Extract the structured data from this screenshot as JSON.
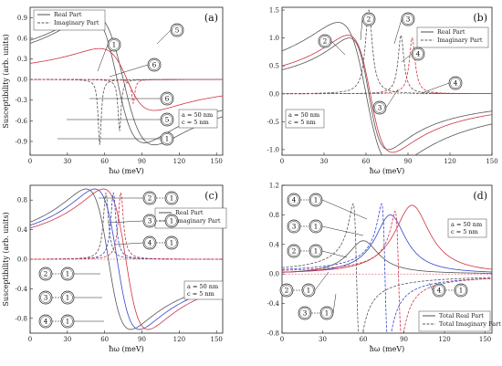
{
  "chart_data": [
    {
      "type": "line",
      "panel": "(a)",
      "xlabel": "ħω (meV)",
      "ylabel": "Susceptibility (arb. units)",
      "xlim": [
        0,
        155
      ],
      "ylim": [
        -1.1,
        1.05
      ],
      "xticks": [
        "0",
        "30",
        "60",
        "90",
        "120",
        "150"
      ],
      "yticks": [
        "0.9",
        "0.6",
        "0.3",
        "0.0",
        "-0.3",
        "-0.6",
        "-0.9"
      ],
      "legend": {
        "position": "top-left",
        "entries": [
          "Real Part",
          "Imaginary Part"
        ]
      },
      "annotation": [
        "a = 50 nm",
        "c = 5 nm"
      ],
      "labels": [
        "1",
        "5",
        "6",
        "6",
        "5",
        "1"
      ],
      "series": [
        {
          "label": "1",
          "style": "solid",
          "color": "#555555",
          "kind": "real",
          "E0": 75,
          "gamma": 25,
          "amp": 0.95
        },
        {
          "label": "5",
          "style": "solid",
          "color": "#555555",
          "kind": "real",
          "E0": 70,
          "gamma": 22,
          "amp": 0.92
        },
        {
          "label": "6",
          "style": "solid",
          "color": "#cc3344",
          "kind": "real",
          "E0": 78,
          "gamma": 22,
          "amp": 0.45
        },
        {
          "label": "1",
          "style": "dash",
          "color": "#555555",
          "kind": "imag",
          "E0": 56,
          "gamma": 1.5,
          "amp": -0.95
        },
        {
          "label": "5",
          "style": "dash",
          "color": "#555555",
          "kind": "imag",
          "E0": 72,
          "gamma": 1.5,
          "amp": -0.75
        },
        {
          "label": "6",
          "style": "dash",
          "color": "#cc3344",
          "kind": "imag",
          "E0": 83,
          "gamma": 1.5,
          "amp": -0.35
        }
      ]
    },
    {
      "type": "line",
      "panel": "(b)",
      "xlabel": "ħω (meV)",
      "ylabel": "",
      "xlim": [
        0,
        150
      ],
      "ylim": [
        -1.1,
        1.55
      ],
      "xticks": [
        "0",
        "30",
        "60",
        "90",
        "120",
        "150"
      ],
      "yticks": [
        "1.5",
        "1.0",
        "0.5",
        "0.0",
        "-0.5",
        "-1.0"
      ],
      "legend": {
        "position": "top-right",
        "entries": [
          "Real Part",
          "Imaginary Part"
        ]
      },
      "annotation": [
        "a = 50 nm",
        "c = 5 nm"
      ],
      "labels": [
        "2",
        "2",
        "3",
        "4",
        "4",
        "3"
      ],
      "series": [
        {
          "label": "2",
          "style": "solid",
          "color": "#555555",
          "kind": "real",
          "E0": 60,
          "gamma": 20,
          "amp": 1.28
        },
        {
          "label": "3",
          "style": "solid",
          "color": "#555555",
          "kind": "real",
          "E0": 62,
          "gamma": 14,
          "amp": 1.0
        },
        {
          "label": "4",
          "style": "solid",
          "color": "#cc3344",
          "kind": "real",
          "E0": 63,
          "gamma": 16,
          "amp": 1.05
        },
        {
          "label": "2",
          "style": "dash",
          "color": "#555555",
          "kind": "imag",
          "E0": 62,
          "gamma": 3,
          "amp": 1.5
        },
        {
          "label": "3",
          "style": "dash",
          "color": "#555555",
          "kind": "imag",
          "E0": 85,
          "gamma": 2.5,
          "amp": 1.05
        },
        {
          "label": "4",
          "style": "dash",
          "color": "#cc3344",
          "kind": "imag",
          "E0": 93,
          "gamma": 2.5,
          "amp": 1.0
        }
      ]
    },
    {
      "type": "line",
      "panel": "(c)",
      "xlabel": "ħω (meV)",
      "ylabel": "Susceptibility (arb. units)",
      "xlim": [
        0,
        155
      ],
      "ylim": [
        -1.0,
        1.0
      ],
      "xticks": [
        "0",
        "30",
        "60",
        "90",
        "120",
        "150"
      ],
      "yticks": [
        "0.8",
        "0.4",
        "0.0",
        "-0.4",
        "-0.8"
      ],
      "legend": {
        "position": "top-right",
        "entries": [
          "Real Part",
          "Imaginary Part"
        ]
      },
      "annotation": [
        "a = 50 nm",
        "c = 5 nm"
      ],
      "labels": [
        [
          "2",
          "1"
        ],
        [
          "3",
          "1"
        ],
        [
          "4",
          "1"
        ],
        [
          "2",
          "1"
        ],
        [
          "3",
          "1"
        ],
        [
          "4",
          "1"
        ]
      ],
      "series": [
        {
          "label": "2→1",
          "style": "solid",
          "color": "#555555",
          "kind": "real",
          "E0": 63,
          "gamma": 18,
          "amp": 0.95
        },
        {
          "label": "3→1",
          "style": "solid",
          "color": "#3344cc",
          "kind": "real",
          "E0": 70,
          "gamma": 18,
          "amp": 0.95
        },
        {
          "label": "4→1",
          "style": "solid",
          "color": "#cc3344",
          "kind": "real",
          "E0": 77,
          "gamma": 18,
          "amp": 0.95
        },
        {
          "label": "2→1",
          "style": "dash",
          "color": "#555555",
          "kind": "imag",
          "E0": 61,
          "gamma": 2.5,
          "amp": 0.9
        },
        {
          "label": "3→1",
          "style": "dash",
          "color": "#3344cc",
          "kind": "imag",
          "E0": 67,
          "gamma": 2.5,
          "amp": 0.9
        },
        {
          "label": "4→1",
          "style": "dash",
          "color": "#cc3344",
          "kind": "imag",
          "E0": 73,
          "gamma": 2.5,
          "amp": 0.9
        }
      ]
    },
    {
      "type": "line",
      "panel": "(d)",
      "xlabel": "ħω (meV)",
      "ylabel": "",
      "xlim": [
        0,
        155
      ],
      "ylim": [
        -0.8,
        1.2
      ],
      "xticks": [
        "0",
        "30",
        "60",
        "90",
        "120",
        "150"
      ],
      "yticks": [
        "1.2",
        "0.8",
        "0.4",
        "0.0",
        "-0.4",
        "-0.8"
      ],
      "legend": {
        "position": "bottom-right",
        "entries": [
          "Total Real Part",
          "Total Imaginary Part"
        ]
      },
      "annotation": [
        "a = 50 nm",
        "c = 5 nm"
      ],
      "labels": [
        [
          "4",
          "1"
        ],
        [
          "3",
          "1"
        ],
        [
          "2",
          "1"
        ],
        [
          "2",
          "1"
        ],
        [
          "3",
          "1"
        ],
        [
          "4",
          "1"
        ]
      ],
      "series": [
        {
          "label": "2→1",
          "style": "solid",
          "color": "#555555",
          "kind": "imagpeak",
          "E0": 60,
          "gamma": 14,
          "amp": 0.45
        },
        {
          "label": "3→1",
          "style": "solid",
          "color": "#3344cc",
          "kind": "imagpeak",
          "E0": 80,
          "gamma": 14,
          "amp": 0.8
        },
        {
          "label": "4→1",
          "style": "solid",
          "color": "#cc3344",
          "kind": "imagpeak",
          "E0": 96,
          "gamma": 16,
          "amp": 0.93
        },
        {
          "label": "2→1",
          "style": "dash",
          "color": "#555555",
          "kind": "realderiv",
          "E0": 55,
          "gamma": 2.5,
          "amp": 0.95
        },
        {
          "label": "3→1",
          "style": "dash",
          "color": "#3344cc",
          "kind": "realderiv",
          "E0": 76,
          "gamma": 2.5,
          "amp": 0.95
        },
        {
          "label": "4→1",
          "style": "dash",
          "color": "#cc3344",
          "kind": "realderiv",
          "E0": 86,
          "gamma": 2.5,
          "amp": 0.85
        }
      ]
    }
  ]
}
